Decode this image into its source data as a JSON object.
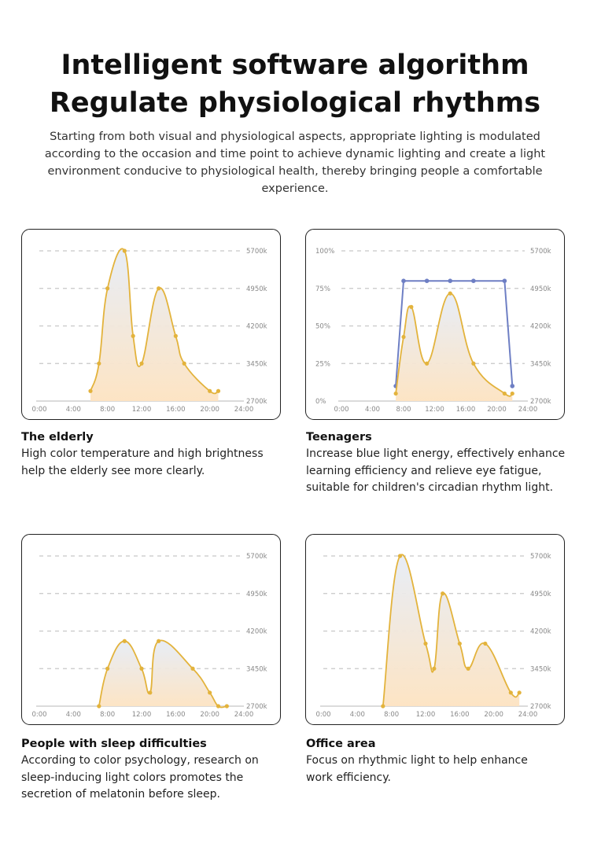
{
  "heading": {
    "line1": "Intelligent software algorithm",
    "line2": "Regulate physiological rhythms",
    "subtitle": "Starting from both visual and physiological aspects, appropriate lighting is modulated according to the occasion and time point to achieve dynamic lighting and create a light environment conducive to physiological health, thereby bringing people a comfortable experience."
  },
  "colors": {
    "curve": "#e3b33c",
    "blue_line": "#6e7fc4",
    "fill_top": "#e6ecf6",
    "fill_bottom": "#fde3c1",
    "grid": "#c8c8c8",
    "axis": "#cfcfcf",
    "tick_text": "#888888"
  },
  "panels": [
    {
      "name": "The elderly",
      "description": "High color temperature and high brightness help the elderly see more clearly."
    },
    {
      "name": "Teenagers",
      "description": "Increase blue light energy, effectively enhance learning efficiency and relieve eye fatigue, suitable for children's circadian rhythm light."
    },
    {
      "name": "People with sleep difficulties",
      "description": "According to color psychology, research on sleep-inducing light colors promotes the secretion of melatonin before sleep."
    },
    {
      "name": "Office area",
      "description": "Focus on rhythmic light to help enhance work efficiency."
    }
  ],
  "chart_data": [
    {
      "type": "line",
      "x_ticks": [
        "0:00",
        "4:00",
        "8:00",
        "12:00",
        "16:00",
        "20:00",
        "24:00"
      ],
      "y_right_ticks": [
        "2700k",
        "3450k",
        "4200k",
        "4950k",
        "5700k"
      ],
      "xlim": [
        0,
        24
      ],
      "ylim": [
        2700,
        5700
      ],
      "grid": true,
      "series": [
        {
          "x": [
            6,
            7,
            8,
            10,
            11,
            12,
            14,
            16,
            17,
            20,
            21
          ],
          "y": [
            2900,
            3450,
            4950,
            5700,
            4000,
            3450,
            4950,
            4000,
            3450,
            2900,
            2900
          ]
        }
      ]
    },
    {
      "type": "line",
      "x_ticks": [
        "0:00",
        "4:00",
        "8:00",
        "12:00",
        "16:00",
        "20:00",
        "24:00"
      ],
      "y_left_ticks": [
        "0%",
        "25%",
        "50%",
        "75%",
        "100%"
      ],
      "y_right_ticks": [
        "2700k",
        "3450k",
        "4200k",
        "4950k",
        "5700k"
      ],
      "xlim": [
        0,
        24
      ],
      "ylim": [
        0,
        100
      ],
      "grid": true,
      "series": [
        {
          "axis": "left",
          "x": [
            7,
            8,
            11,
            14,
            17,
            21,
            22
          ],
          "y": [
            10,
            80,
            80,
            80,
            80,
            80,
            10
          ]
        },
        {
          "axis": "right",
          "x": [
            7,
            8,
            9,
            11,
            14,
            17,
            21,
            22
          ],
          "y": [
            2850,
            3980,
            4580,
            3450,
            4850,
            3450,
            2850,
            2850
          ]
        }
      ]
    },
    {
      "type": "line",
      "x_ticks": [
        "0:00",
        "4:00",
        "8:00",
        "12:00",
        "16:00",
        "20:00",
        "24:00"
      ],
      "y_right_ticks": [
        "2700k",
        "3450k",
        "4200k",
        "4950k",
        "5700k"
      ],
      "xlim": [
        0,
        24
      ],
      "ylim": [
        2700,
        5700
      ],
      "grid": true,
      "series": [
        {
          "x": [
            7,
            8,
            10,
            12,
            13,
            14,
            18,
            20,
            21,
            22
          ],
          "y": [
            2700,
            3450,
            4000,
            3450,
            2970,
            4000,
            3450,
            2970,
            2700,
            2700
          ]
        }
      ]
    },
    {
      "type": "line",
      "x_ticks": [
        "0:00",
        "4:00",
        "8:00",
        "12:00",
        "16:00",
        "20:00",
        "24:00"
      ],
      "y_right_ticks": [
        "2700k",
        "3450k",
        "4200k",
        "4950k",
        "5700k"
      ],
      "xlim": [
        0,
        24
      ],
      "ylim": [
        2700,
        5700
      ],
      "grid": true,
      "series": [
        {
          "x": [
            7,
            9,
            12,
            13,
            14,
            16,
            17,
            19,
            22,
            23
          ],
          "y": [
            2700,
            5700,
            3950,
            3450,
            4950,
            3950,
            3450,
            3950,
            2970,
            2970
          ]
        }
      ]
    }
  ]
}
